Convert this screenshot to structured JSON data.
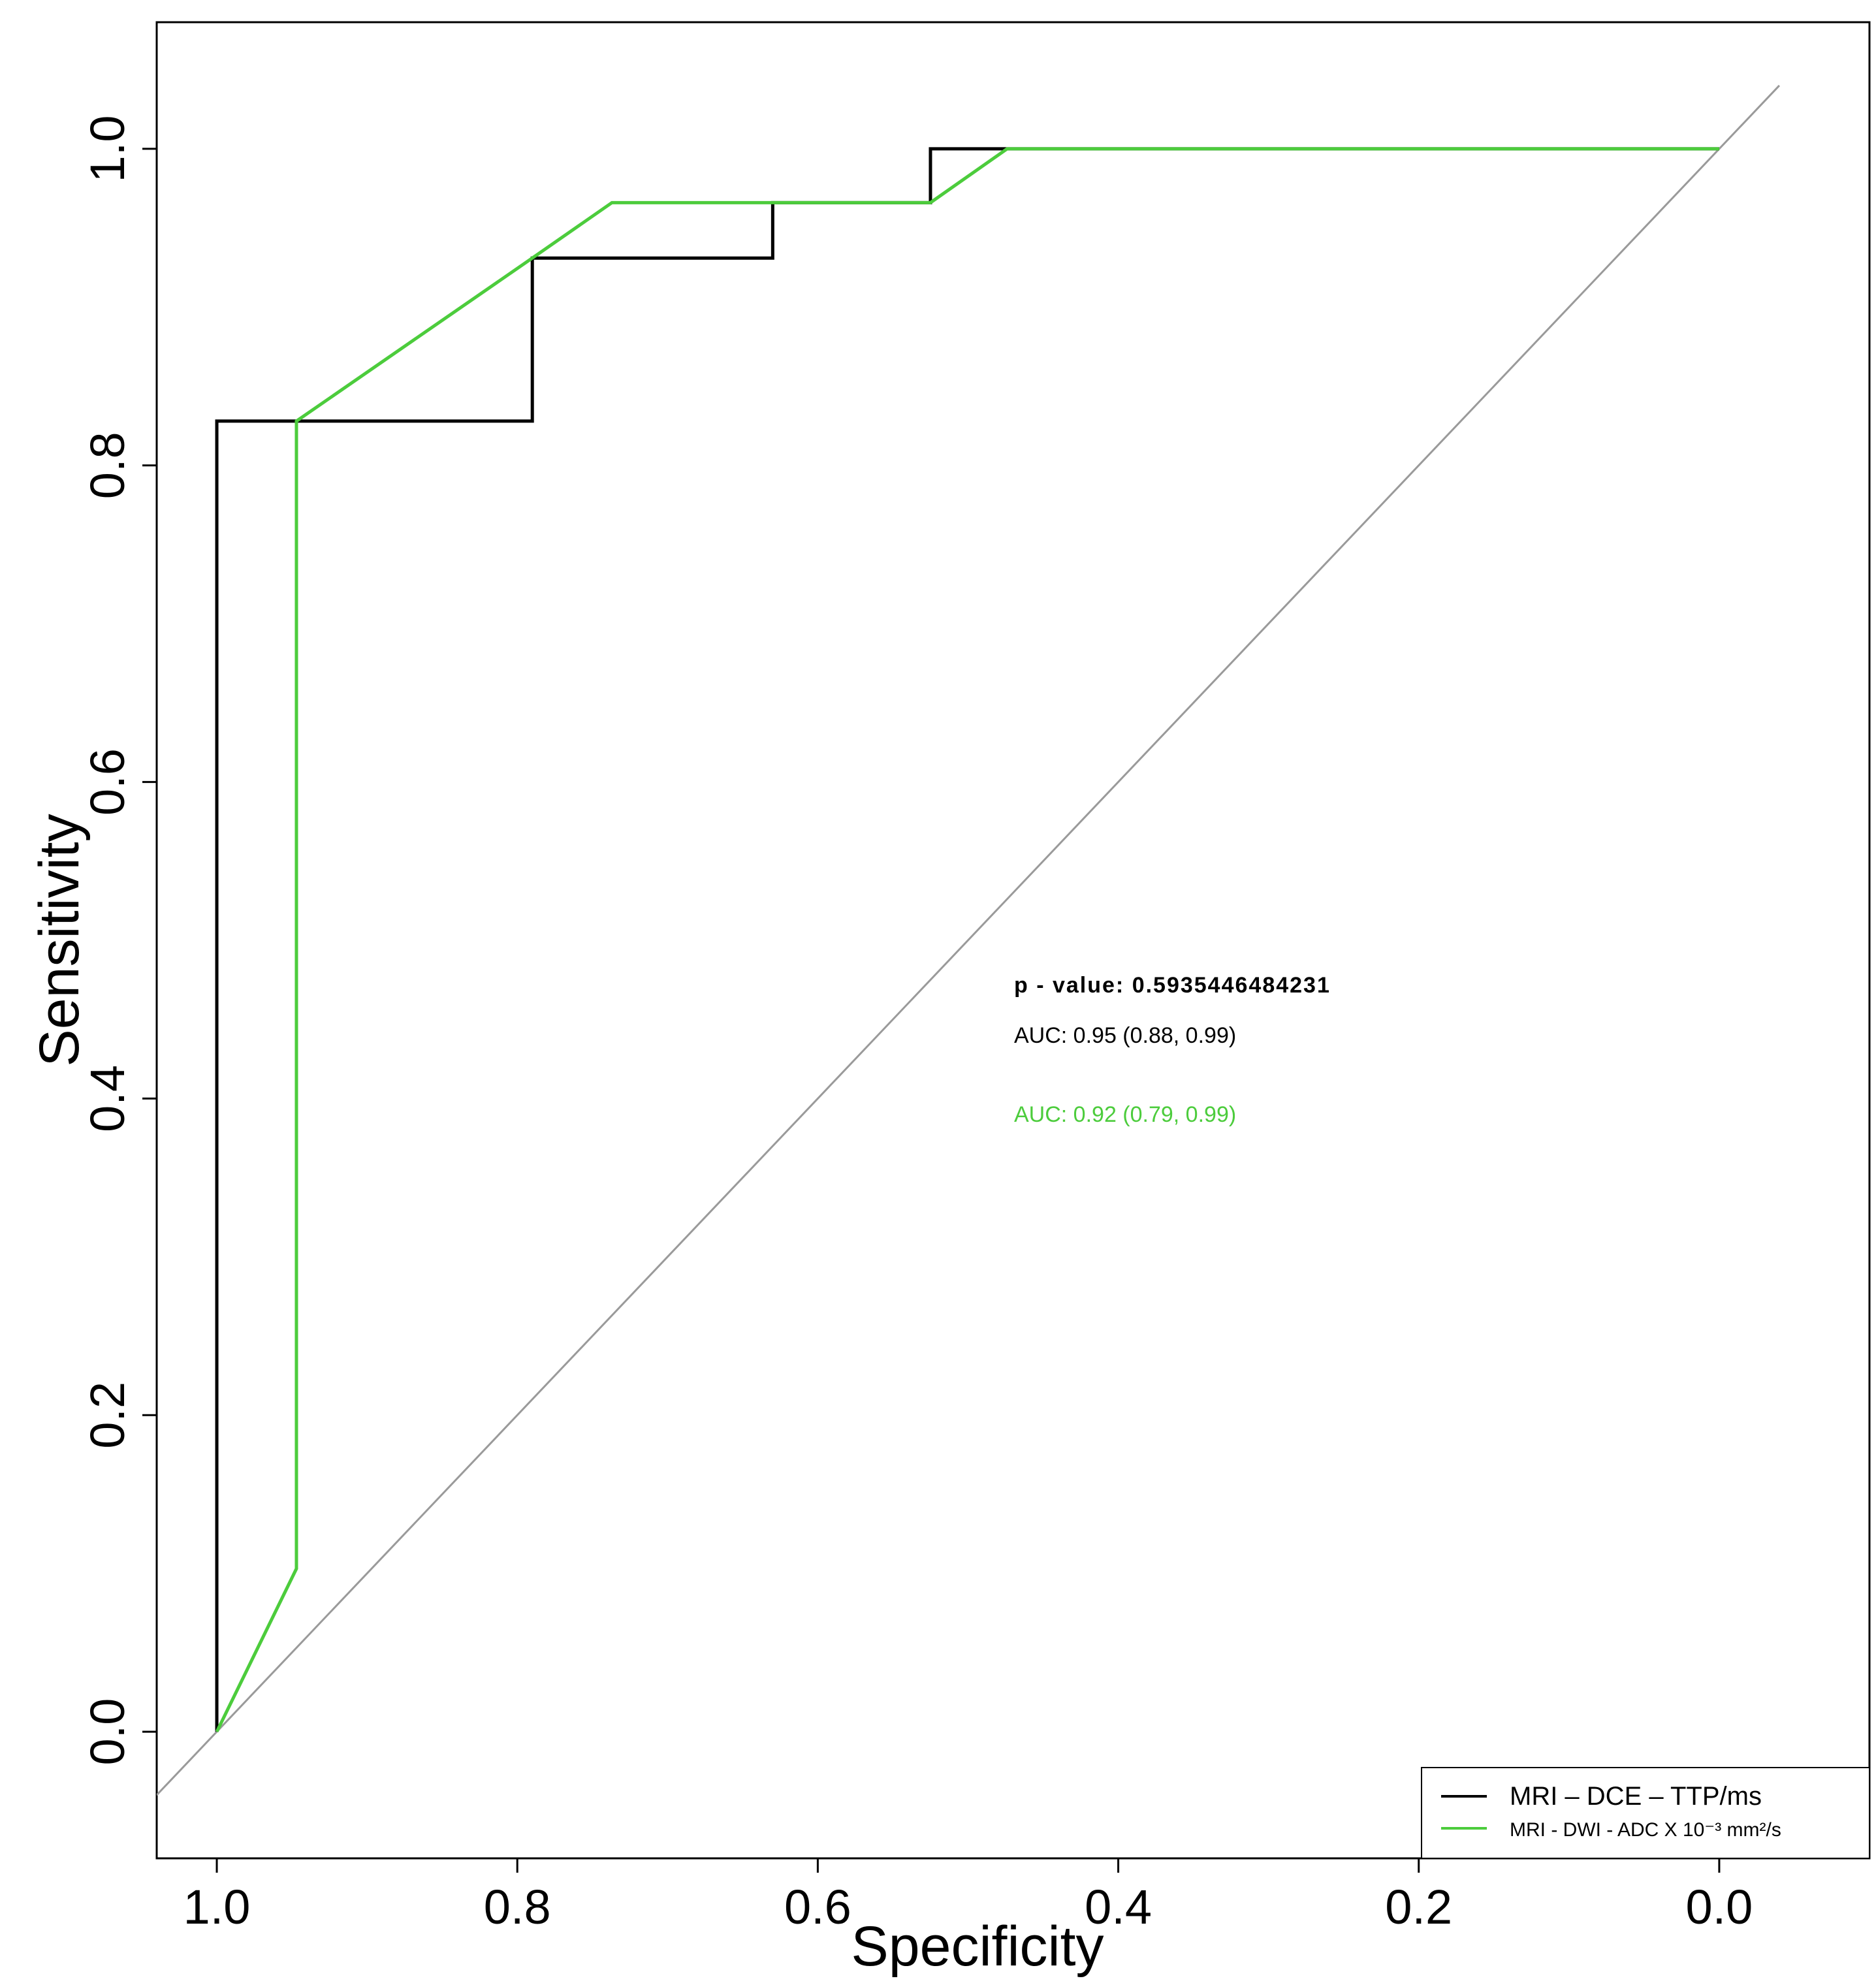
{
  "chart_data": {
    "type": "line",
    "title": "",
    "xlabel": "Specificity",
    "ylabel": "Sensitivity",
    "xlim": [
      1.04,
      -0.1
    ],
    "ylim": [
      -0.08,
      1.08
    ],
    "x_ticks": [
      "1.0",
      "0.8",
      "0.6",
      "0.4",
      "0.2",
      "0.0"
    ],
    "y_ticks": [
      "0.0",
      "0.2",
      "0.4",
      "0.6",
      "0.8",
      "1.0"
    ],
    "grid": false,
    "legend_position": "bottom-right",
    "series": [
      {
        "name": "MRI – DCE – TTP/ms",
        "color": "#000000",
        "specificity": [
          1.0,
          1.0,
          0.79,
          0.79,
          0.63,
          0.63,
          0.525,
          0.525,
          0.0
        ],
        "sensitivity": [
          0.0,
          0.828,
          0.828,
          0.931,
          0.931,
          0.966,
          0.966,
          1.0,
          1.0
        ]
      },
      {
        "name": "MRI - DWI - ADC X 10⁻³ mm²/s",
        "color": "#4ccc3c",
        "specificity": [
          1.0,
          0.947,
          0.947,
          0.79,
          0.737,
          0.525,
          0.474,
          0.0
        ],
        "sensitivity": [
          0.0,
          0.103,
          0.828,
          0.931,
          0.966,
          0.966,
          1.0,
          1.0
        ]
      }
    ],
    "reference_line": {
      "color": "#9a9a9a",
      "from": [
        1.04,
        -0.04
      ],
      "to": [
        -0.04,
        1.04
      ]
    },
    "annotations": [
      {
        "text": "p - value: 0.5935446484231",
        "color": "#000000"
      },
      {
        "text": "AUC: 0.95 (0.88, 0.99)",
        "color": "#000000"
      },
      {
        "text": "AUC: 0.92 (0.79, 0.99)",
        "color": "#4ccc3c"
      }
    ],
    "legend": [
      {
        "label": "MRI – DCE – TTP/ms",
        "color": "#000000"
      },
      {
        "label": "MRI -  DWI -  ADC X 10⁻³ mm²/s",
        "color": "#4ccc3c"
      }
    ]
  }
}
